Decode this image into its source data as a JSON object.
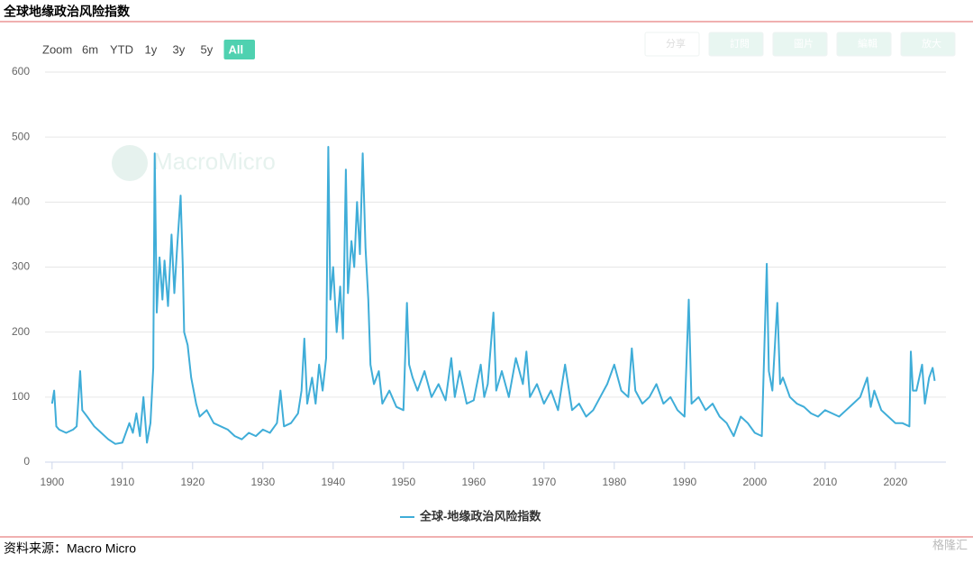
{
  "header": {
    "title": "全球地缘政治风险指数"
  },
  "range_buttons": [
    "Zoom",
    "6m",
    "YTD",
    "1y",
    "3y",
    "5y",
    "All"
  ],
  "tool_buttons": [
    "分享",
    "訂閱",
    "圖片",
    "編輯",
    "放大"
  ],
  "watermark": "MacroMicro",
  "chart_data": {
    "type": "line",
    "xlim": [
      1899,
      2027.2
    ],
    "ylim": [
      0,
      600
    ],
    "xticks": [
      1900,
      1910,
      1920,
      1930,
      1940,
      1950,
      1960,
      1970,
      1980,
      1990,
      2000,
      2010,
      2020
    ],
    "yticks": [
      0,
      100,
      200,
      300,
      400,
      500,
      600
    ],
    "grid": true,
    "x": [
      1900,
      1900.3,
      1900.6,
      1901,
      1902,
      1903,
      1903.5,
      1904,
      1904.3,
      1905,
      1906,
      1907,
      1908,
      1909,
      1910,
      1911,
      1911.5,
      1912,
      1912.5,
      1913,
      1913.5,
      1914,
      1914.4,
      1914.6,
      1914.9,
      1915.3,
      1915.7,
      1916,
      1916.5,
      1917,
      1917.4,
      1917.8,
      1918.3,
      1918.6,
      1918.8,
      1919.3,
      1919.8,
      1920.5,
      1921,
      1922,
      1923,
      1924,
      1925,
      1926,
      1927,
      1928,
      1929,
      1930,
      1931,
      1932,
      1932.5,
      1933,
      1934,
      1935,
      1935.5,
      1935.9,
      1936.3,
      1937,
      1937.5,
      1938,
      1938.5,
      1939,
      1939.3,
      1939.6,
      1940,
      1940.5,
      1941,
      1941.4,
      1941.8,
      1942.1,
      1942.6,
      1943,
      1943.4,
      1943.8,
      1944.2,
      1944.6,
      1945,
      1945.3,
      1945.8,
      1946.5,
      1947,
      1948,
      1949,
      1950,
      1950.5,
      1950.8,
      1951.3,
      1952,
      1953,
      1954,
      1955,
      1956,
      1956.8,
      1957.3,
      1958,
      1959,
      1960,
      1961,
      1961.5,
      1962,
      1962.8,
      1963.2,
      1964,
      1965,
      1966,
      1967,
      1967.5,
      1968,
      1969,
      1970,
      1971,
      1972,
      1973,
      1974,
      1975,
      1976,
      1977,
      1978,
      1979,
      1980,
      1981,
      1982,
      1982.5,
      1983,
      1984,
      1985,
      1986,
      1987,
      1988,
      1989,
      1990,
      1990.6,
      1991,
      1992,
      1993,
      1994,
      1995,
      1996,
      1997,
      1998,
      1999,
      2000,
      2001,
      2001.7,
      2002,
      2002.5,
      2003.2,
      2003.6,
      2004,
      2005,
      2006,
      2007,
      2008,
      2009,
      2010,
      2011,
      2012,
      2013,
      2014,
      2015,
      2016,
      2016.5,
      2017,
      2018,
      2019,
      2020,
      2021,
      2022,
      2022.2,
      2022.5,
      2023,
      2023.8,
      2024.2,
      2024.8,
      2025.3,
      2025.6
    ],
    "series": [
      {
        "name": "全球-地缘政治风险指数",
        "color": "#3fadd8",
        "values": [
          90,
          110,
          55,
          50,
          45,
          50,
          55,
          140,
          80,
          70,
          55,
          45,
          35,
          28,
          30,
          60,
          45,
          75,
          40,
          100,
          30,
          60,
          145,
          475,
          230,
          315,
          250,
          310,
          240,
          350,
          260,
          330,
          410,
          300,
          200,
          180,
          130,
          90,
          70,
          80,
          60,
          55,
          50,
          40,
          35,
          45,
          40,
          50,
          45,
          60,
          110,
          55,
          60,
          75,
          110,
          190,
          90,
          130,
          90,
          150,
          110,
          160,
          485,
          250,
          300,
          200,
          270,
          190,
          450,
          260,
          340,
          300,
          400,
          320,
          475,
          330,
          250,
          150,
          120,
          140,
          90,
          110,
          85,
          80,
          245,
          150,
          130,
          110,
          140,
          100,
          120,
          95,
          160,
          100,
          140,
          90,
          95,
          150,
          100,
          120,
          230,
          110,
          140,
          100,
          160,
          120,
          170,
          100,
          120,
          90,
          110,
          80,
          150,
          80,
          90,
          70,
          80,
          100,
          120,
          150,
          110,
          100,
          175,
          110,
          90,
          100,
          120,
          90,
          100,
          80,
          70,
          250,
          90,
          100,
          80,
          90,
          70,
          60,
          40,
          70,
          60,
          45,
          40,
          305,
          140,
          110,
          245,
          120,
          130,
          100,
          90,
          85,
          75,
          70,
          80,
          75,
          70,
          80,
          90,
          100,
          130,
          85,
          110,
          80,
          70,
          60,
          60,
          55,
          170,
          110,
          110,
          150,
          90,
          130,
          145,
          125
        ]
      }
    ]
  },
  "footer": {
    "source": "资料来源：Macro Micro",
    "logo": "格隆汇"
  }
}
